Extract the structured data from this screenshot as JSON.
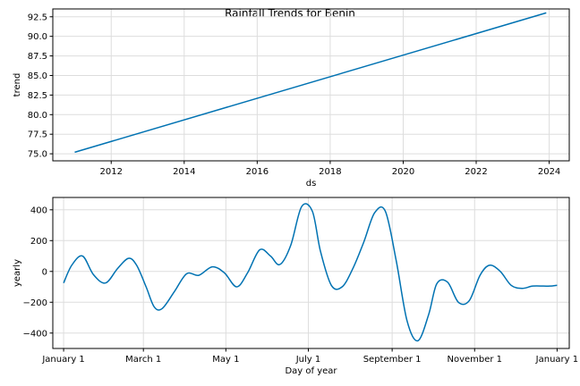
{
  "title": "Rainfall Trends for Benin",
  "line_color": "#0072B2",
  "grid_color": "#dddddd",
  "chart_data": [
    {
      "type": "line",
      "name": "trend-panel",
      "xlabel": "ds",
      "ylabel": "trend",
      "xlim": [
        2010.4,
        2024.55
      ],
      "ylim": [
        74.1,
        93.5
      ],
      "x_ticks": [
        2012,
        2014,
        2016,
        2018,
        2020,
        2022,
        2024
      ],
      "x_tick_labels": [
        "2012",
        "2014",
        "2016",
        "2018",
        "2020",
        "2022",
        "2024"
      ],
      "y_ticks": [
        75.0,
        77.5,
        80.0,
        82.5,
        85.0,
        87.5,
        90.0,
        92.5
      ],
      "y_tick_labels": [
        "75.0",
        "77.5",
        "80.0",
        "82.5",
        "85.0",
        "87.5",
        "90.0",
        "92.5"
      ],
      "grid": true,
      "series": [
        {
          "x": [
            2011.0,
            2023.92
          ],
          "y": [
            75.2,
            93.0
          ]
        }
      ]
    },
    {
      "type": "line",
      "name": "yearly-panel",
      "xlabel": "Day of year",
      "ylabel": "yearly",
      "xlim": [
        -8,
        374
      ],
      "ylim": [
        -500,
        480
      ],
      "x_ticks": [
        0,
        59,
        120,
        181,
        243,
        304,
        365
      ],
      "x_tick_labels": [
        "January 1",
        "March 1",
        "May 1",
        "July 1",
        "September 1",
        "November 1",
        "January 1"
      ],
      "y_ticks": [
        -400,
        -200,
        0,
        200,
        400
      ],
      "y_tick_labels": [
        "−400",
        "−200",
        "0",
        "200",
        "400"
      ],
      "grid": true,
      "series": [
        {
          "x": [
            0,
            6,
            14,
            22,
            31,
            40,
            48,
            54,
            61,
            67,
            73,
            82,
            91,
            100,
            110,
            119,
            128,
            136,
            145,
            153,
            160,
            168,
            176,
            184,
            190,
            198,
            206,
            214,
            222,
            230,
            238,
            246,
            254,
            262,
            270,
            276,
            284,
            292,
            300,
            308,
            315,
            323,
            331,
            339,
            347,
            355,
            360,
            365
          ],
          "y": [
            -75,
            40,
            100,
            -20,
            -75,
            20,
            85,
            40,
            -100,
            -230,
            -240,
            -130,
            -15,
            -25,
            30,
            -10,
            -100,
            -10,
            140,
            100,
            45,
            170,
            420,
            390,
            130,
            -90,
            -100,
            20,
            190,
            380,
            390,
            70,
            -320,
            -450,
            -280,
            -80,
            -70,
            -200,
            -190,
            -25,
            40,
            0,
            -90,
            -110,
            -95,
            -95,
            -95,
            -90
          ]
        }
      ]
    }
  ]
}
